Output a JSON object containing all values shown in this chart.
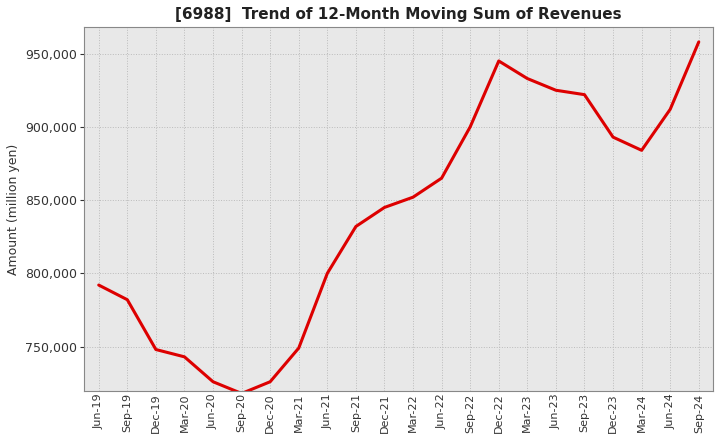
{
  "title": "[6988]  Trend of 12-Month Moving Sum of Revenues",
  "ylabel": "Amount (million yen)",
  "line_color": "#dd0000",
  "background_color": "#ffffff",
  "plot_bg_color": "#e8e8e8",
  "grid_color": "#bbbbbb",
  "ylim": [
    720000,
    968000
  ],
  "yticks": [
    750000,
    800000,
    850000,
    900000,
    950000
  ],
  "x_labels": [
    "Jun-19",
    "Sep-19",
    "Dec-19",
    "Mar-20",
    "Jun-20",
    "Sep-20",
    "Dec-20",
    "Mar-21",
    "Jun-21",
    "Sep-21",
    "Dec-21",
    "Mar-22",
    "Jun-22",
    "Sep-22",
    "Dec-22",
    "Mar-23",
    "Jun-23",
    "Sep-23",
    "Dec-23",
    "Mar-24",
    "Jun-24",
    "Sep-24"
  ],
  "values": [
    792000,
    782000,
    748000,
    743000,
    726000,
    718000,
    726000,
    749000,
    800000,
    832000,
    845000,
    852000,
    865000,
    900000,
    945000,
    933000,
    925000,
    922000,
    893000,
    884000,
    912000,
    958000
  ]
}
